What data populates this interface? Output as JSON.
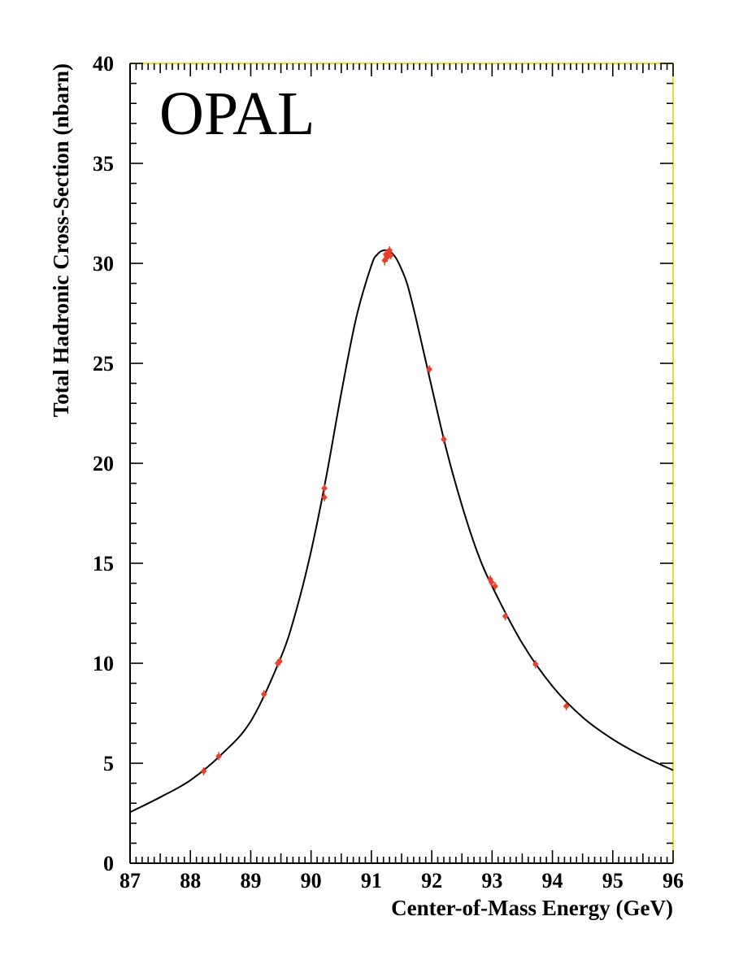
{
  "chart_data": {
    "type": "scatter",
    "annotation": "OPAL",
    "xlabel": "Center-of-Mass Energy (GeV)",
    "ylabel": "Total Hadronic Cross-Section (nbarn)",
    "xlim": [
      87,
      96
    ],
    "ylim": [
      0,
      40
    ],
    "x_ticks": [
      "87",
      "88",
      "89",
      "90",
      "91",
      "92",
      "93",
      "94",
      "95",
      "96"
    ],
    "y_ticks": [
      "0",
      "5",
      "10",
      "15",
      "20",
      "25",
      "30",
      "35",
      "40"
    ],
    "grid": false,
    "frame_color": "#e8e020",
    "series": [
      {
        "type": "scatter",
        "color": "#e8402a",
        "points": [
          {
            "x": 88.22,
            "y": 4.6,
            "err": 0.1
          },
          {
            "x": 88.47,
            "y": 5.35,
            "err": 0.1
          },
          {
            "x": 89.22,
            "y": 8.45,
            "err": 0.12
          },
          {
            "x": 89.45,
            "y": 10.0,
            "err": 0.12
          },
          {
            "x": 89.48,
            "y": 10.1,
            "err": 0.12
          },
          {
            "x": 90.22,
            "y": 18.3,
            "err": 0.18
          },
          {
            "x": 90.22,
            "y": 18.75,
            "err": 0.18
          },
          {
            "x": 91.22,
            "y": 30.15,
            "err": 0.25
          },
          {
            "x": 91.24,
            "y": 30.45,
            "err": 0.22
          },
          {
            "x": 91.26,
            "y": 30.3,
            "err": 0.22
          },
          {
            "x": 91.28,
            "y": 30.5,
            "err": 0.2
          },
          {
            "x": 91.3,
            "y": 30.65,
            "err": 0.2
          },
          {
            "x": 91.32,
            "y": 30.4,
            "err": 0.2
          },
          {
            "x": 91.96,
            "y": 24.7,
            "err": 0.2
          },
          {
            "x": 92.2,
            "y": 21.2,
            "err": 0.2
          },
          {
            "x": 92.97,
            "y": 14.2,
            "err": 0.15
          },
          {
            "x": 92.99,
            "y": 14.05,
            "err": 0.15
          },
          {
            "x": 93.05,
            "y": 13.85,
            "err": 0.15
          },
          {
            "x": 93.22,
            "y": 12.35,
            "err": 0.12
          },
          {
            "x": 93.72,
            "y": 9.95,
            "err": 0.1
          },
          {
            "x": 94.23,
            "y": 7.85,
            "err": 0.1
          }
        ]
      },
      {
        "type": "line",
        "color": "#000000",
        "x": [
          87.0,
          87.5,
          88.0,
          88.5,
          89.0,
          89.5,
          89.75,
          90.0,
          90.25,
          90.5,
          90.75,
          91.0,
          91.1,
          91.2,
          91.3,
          91.4,
          91.5,
          91.6,
          91.75,
          92.0,
          92.25,
          92.5,
          92.75,
          93.0,
          93.5,
          94.0,
          94.5,
          95.0,
          95.5,
          96.0
        ],
        "y": [
          2.55,
          3.3,
          4.15,
          5.4,
          7.1,
          10.3,
          12.6,
          15.6,
          19.3,
          23.5,
          27.3,
          29.9,
          30.45,
          30.65,
          30.6,
          30.3,
          29.7,
          28.9,
          27.1,
          23.8,
          20.6,
          17.9,
          15.6,
          13.85,
          11.0,
          8.85,
          7.3,
          6.2,
          5.35,
          4.65
        ]
      }
    ]
  }
}
